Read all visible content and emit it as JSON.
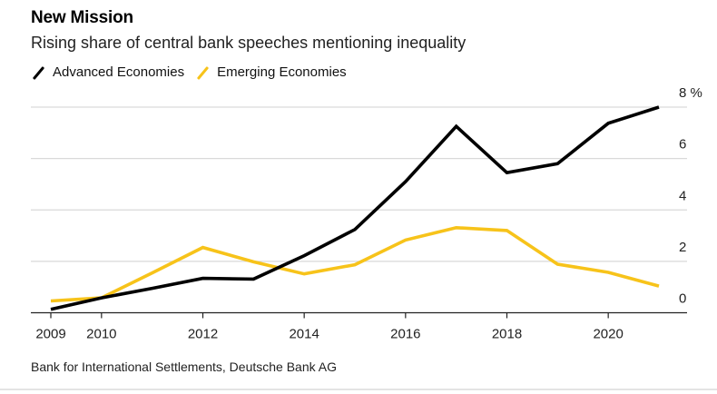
{
  "header": {
    "title": "New Mission",
    "subtitle": "Rising share of central bank speeches mentioning inequality"
  },
  "legend": [
    {
      "label": "Advanced Economies",
      "color": "#000000"
    },
    {
      "label": "Emerging Economies",
      "color": "#f7c31a"
    }
  ],
  "footer": {
    "source": "Bank for International Settlements, Deutsche Bank AG"
  },
  "chart_data": {
    "type": "line",
    "title": "New Mission",
    "subtitle": "Rising share of central bank speeches mentioning inequality",
    "xlabel": "",
    "ylabel": "",
    "x": [
      2009,
      2010,
      2011,
      2012,
      2013,
      2014,
      2015,
      2016,
      2017,
      2018,
      2019,
      2020,
      2021
    ],
    "series": [
      {
        "name": "Advanced Economies",
        "color": "#000000",
        "values": [
          0.13,
          0.58,
          0.95,
          1.34,
          1.31,
          2.22,
          3.24,
          5.1,
          7.25,
          5.45,
          5.8,
          7.37,
          8.0
        ]
      },
      {
        "name": "Emerging Economies",
        "color": "#f7c31a",
        "values": [
          0.46,
          0.58,
          1.55,
          2.54,
          1.98,
          1.51,
          1.87,
          2.83,
          3.31,
          3.2,
          1.89,
          1.57,
          1.04
        ]
      }
    ],
    "xlim": [
      2009,
      2021
    ],
    "ylim": [
      0,
      8
    ],
    "x_ticks": [
      2009,
      2010,
      2012,
      2014,
      2016,
      2018,
      2020
    ],
    "x_tick_labels": [
      "2009",
      "2010",
      "2012",
      "2014",
      "2016",
      "2018",
      "2020"
    ],
    "y_ticks": [
      0,
      2,
      4,
      6,
      8
    ],
    "y_tick_labels": [
      "0",
      "2",
      "4",
      "6",
      "8 %"
    ],
    "y_axis_side": "right",
    "grid": true,
    "legend_position": "top-left",
    "source": "Bank for International Settlements, Deutsche Bank AG"
  }
}
